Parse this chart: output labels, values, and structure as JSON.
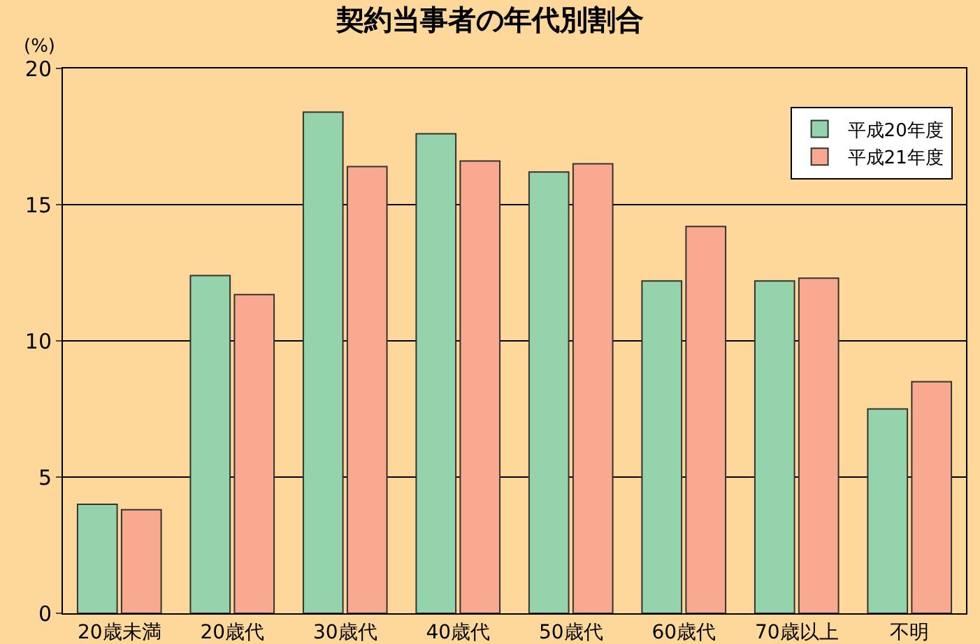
{
  "chart_data": {
    "type": "bar",
    "title": "契約当事者の年代別割合",
    "ylabel": "(%)",
    "categories": [
      "20歳未満",
      "20歳代",
      "30歳代",
      "40歳代",
      "50歳代",
      "60歳代",
      "70歳以上",
      "不明"
    ],
    "series": [
      {
        "name": "平成20年度",
        "color": "#94d3ac",
        "values": [
          4.0,
          12.4,
          18.4,
          17.6,
          16.2,
          12.2,
          12.2,
          7.5
        ]
      },
      {
        "name": "平成21年度",
        "color": "#f9a98f",
        "values": [
          3.8,
          11.7,
          16.4,
          16.6,
          16.5,
          14.2,
          12.3,
          8.5
        ]
      }
    ],
    "ylim": [
      0,
      20
    ],
    "yticks": [
      0,
      5,
      10,
      15,
      20
    ],
    "grid": "y",
    "legend": "top right"
  }
}
